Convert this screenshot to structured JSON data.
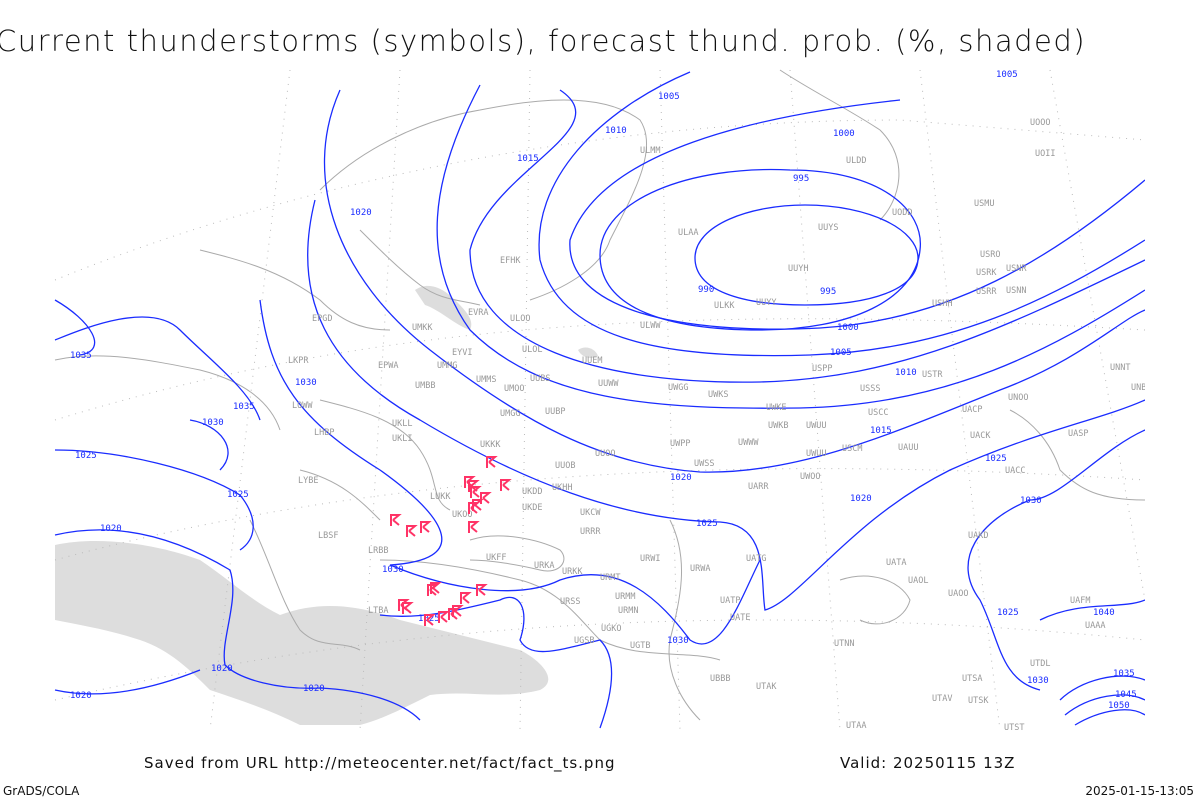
{
  "title": "Current thunderstorms (symbols), forecast thund. prob. (%, shaded)",
  "footer": {
    "saved_from": "Saved from URL http://meteocenter.net/fact/fact_ts.png",
    "valid": "Valid: 20250115 13Z",
    "software": "GrADS/COLA",
    "generated": "2025-01-15-13:05"
  },
  "colors": {
    "isobars": "#1a2cff",
    "thunderstorm_symbols": "#ff3366",
    "probability_shading": "#dddddd",
    "coastlines": "#aaaaaa",
    "station_labels": "#999999"
  },
  "icons": {
    "thunderstorm_symbol": "thunderstorm-icon"
  },
  "isobar_labels": [
    "1005",
    "1005",
    "1010",
    "1015",
    "1000",
    "995",
    "990",
    "995",
    "1000",
    "1005",
    "1010",
    "1015",
    "1020",
    "1020",
    "1020",
    "1025",
    "1025",
    "1030",
    "1030",
    "1030",
    "1030",
    "1035",
    "1035",
    "1030",
    "1025",
    "1025",
    "1020",
    "1020",
    "1020",
    "1020",
    "1025",
    "1030",
    "1025",
    "1035",
    "1040",
    "1045",
    "1050"
  ],
  "stations": [
    "EFHK",
    "ULAA",
    "ULMM",
    "ULOO",
    "EVRA",
    "UMKK",
    "EYVI",
    "UMMG",
    "EPWA",
    "UMBB",
    "UMMS",
    "UMOO",
    "UUBS",
    "ULOL",
    "UUEM",
    "UUWW",
    "UWGG",
    "UWKS",
    "UMGG",
    "UUBP",
    "UKLL",
    "UKLI",
    "UKKK",
    "UUOO",
    "UWPP",
    "UWWW",
    "UWKE",
    "UWKB",
    "UWUU",
    "UWSS",
    "UWOO",
    "UUOB",
    "UKHH",
    "UKDD",
    "UKDE",
    "UKOO",
    "LUKK",
    "UKFF",
    "URKA",
    "URKK",
    "URRR",
    "UKCW",
    "URWI",
    "URWA",
    "URMT",
    "URMM",
    "URMN",
    "URSS",
    "UGSB",
    "UGKO",
    "UGTB",
    "UBBB",
    "UATG",
    "UATP",
    "UATE",
    "UARR",
    "USCM",
    "UAUU",
    "UACK",
    "UACC",
    "UASP",
    "UAKD",
    "UATA",
    "UAOL",
    "UAOO",
    "UTNN",
    "UTAK",
    "UTAV",
    "UTSK",
    "UTSA",
    "UTST",
    "UTAA",
    "UTDL",
    "UAFM",
    "UAAA",
    "UNNT",
    "UNBB",
    "UNOO",
    "UACP",
    "USSS",
    "USCC",
    "USTR",
    "USPP",
    "USHH",
    "USRR",
    "USNN",
    "USRK",
    "USNR",
    "USRO",
    "USMU",
    "UUYS",
    "UUYH",
    "ULKK",
    "UUYY",
    "ULWW",
    "ULDD",
    "UODD",
    "UOII",
    "UOOO",
    "LKPR",
    "LOWW",
    "LHBP",
    "LYBE",
    "LBSF",
    "LRBB",
    "LTBA",
    "EPGD",
    "UWUU"
  ]
}
